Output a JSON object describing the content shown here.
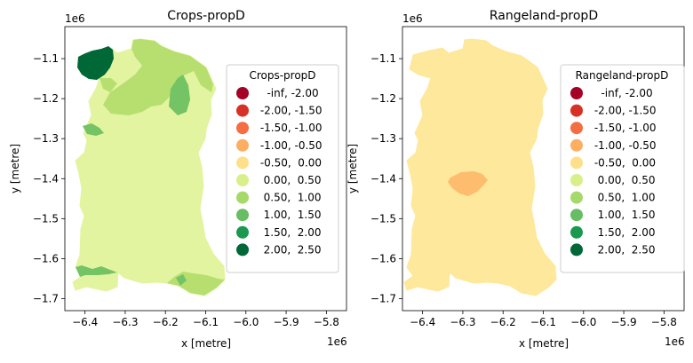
{
  "chart_data": [
    {
      "type": "choropleth",
      "title": "Crops-propD",
      "xlabel": "x [metre]",
      "ylabel": "y [metre]",
      "x_offset_label": "1e6",
      "y_offset_label": "1e6",
      "xticks": [
        "−6.4",
        "−6.3",
        "−6.2",
        "−6.1",
        "−6.0",
        "−5.9",
        "−5.8"
      ],
      "yticks": [
        "−1.1",
        "−1.2",
        "−1.3",
        "−1.4",
        "−1.5",
        "−1.6",
        "−1.7"
      ],
      "xlim": [
        -6.45,
        -5.75
      ],
      "ylim": [
        -1.73,
        -1.02
      ],
      "legend_title": "Crops-propD",
      "legend_location": "right",
      "grid": false
    },
    {
      "type": "choropleth",
      "title": "Rangeland-propD",
      "xlabel": "x [metre]",
      "ylabel": "y [metre]",
      "x_offset_label": "1e6",
      "y_offset_label": "1e6",
      "xticks": [
        "−6.4",
        "−6.3",
        "−6.2",
        "−6.1",
        "−6.0",
        "−5.9",
        "−5.8"
      ],
      "yticks": [
        "−1.1",
        "−1.2",
        "−1.3",
        "−1.4",
        "−1.5",
        "−1.6",
        "−1.7"
      ],
      "xlim": [
        -6.45,
        -5.75
      ],
      "ylim": [
        -1.73,
        -1.02
      ],
      "legend_title": "Rangeland-propD",
      "legend_location": "right",
      "grid": false
    }
  ],
  "legend_classes": [
    {
      "label": "   -inf, -2.00",
      "color": "#a50026"
    },
    {
      "label": " -2.00, -1.50",
      "color": "#d73027"
    },
    {
      "label": " -1.50, -1.00",
      "color": "#f46d43"
    },
    {
      "label": " -1.00, -0.50",
      "color": "#fdae61"
    },
    {
      "label": " -0.50,  0.00",
      "color": "#fee08b"
    },
    {
      "label": "  0.00,  0.50",
      "color": "#d9ef8b"
    },
    {
      "label": "  0.50,  1.00",
      "color": "#a6d96a"
    },
    {
      "label": "  1.00,  1.50",
      "color": "#66bd63"
    },
    {
      "label": "  1.50,  2.00",
      "color": "#1a9850"
    },
    {
      "label": "  2.00,  2.50",
      "color": "#006837"
    }
  ],
  "colors": {
    "crops_base": "#e3f4a0",
    "crops_light_green": "#b6df70",
    "crops_mid_green": "#74c365",
    "crops_dark_green": "#006837",
    "range_base": "#fee89b",
    "range_orange": "#fdbc6e"
  }
}
